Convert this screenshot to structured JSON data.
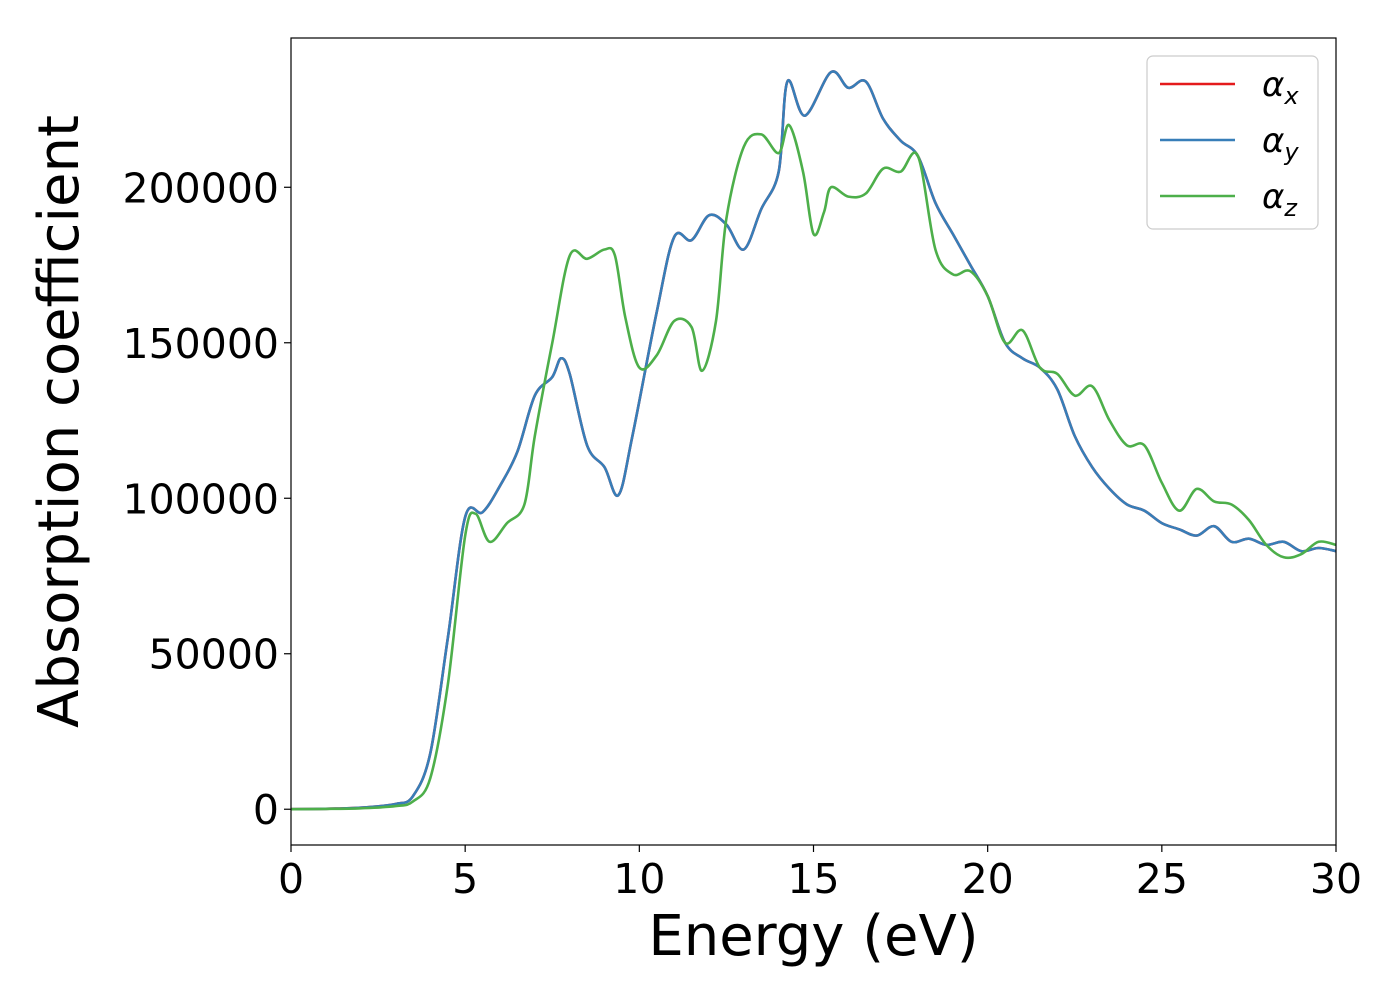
{
  "chart_data": {
    "type": "line",
    "xlabel": "Energy (eV)",
    "ylabel": "Absorption coefficient",
    "xlim": [
      0,
      30
    ],
    "ylim": [
      -11500,
      248000
    ],
    "xticks": [
      0,
      5,
      10,
      15,
      20,
      25,
      30
    ],
    "yticks": [
      0,
      50000,
      100000,
      150000,
      200000
    ],
    "grid": false,
    "legend_position": "top-right",
    "series": [
      {
        "name": "α_x",
        "symbol": "α",
        "subscript": "x",
        "color": "#e41a1c",
        "x": [
          0,
          1,
          2,
          3,
          3.5,
          4,
          4.5,
          5,
          5.5,
          6,
          6.5,
          7,
          7.5,
          7.75,
          8,
          8.5,
          9,
          9.4,
          9.8,
          10.5,
          11,
          11.5,
          12,
          12.5,
          13,
          13.5,
          14,
          14.25,
          14.75,
          15.5,
          16,
          16.5,
          17,
          17.5,
          18,
          18.5,
          19,
          19.5,
          20,
          20.5,
          21,
          21.5,
          22,
          22.5,
          23,
          23.5,
          24,
          24.5,
          25,
          25.5,
          26,
          26.5,
          27,
          27.5,
          28,
          28.5,
          29,
          29.5,
          30
        ],
        "y": [
          0,
          150,
          500,
          1700,
          4200,
          18000,
          55000,
          94000,
          95500,
          104000,
          115000,
          133000,
          139000,
          145000,
          140000,
          117000,
          110000,
          101000,
          120000,
          160000,
          184000,
          183000,
          191000,
          188000,
          180000,
          193000,
          205000,
          234000,
          223000,
          237000,
          232000,
          234000,
          222000,
          215000,
          210000,
          195000,
          185000,
          175000,
          165000,
          150000,
          145000,
          142000,
          135000,
          120000,
          110000,
          103000,
          98000,
          96000,
          92000,
          90000,
          88000,
          91000,
          86000,
          87000,
          85000,
          86000,
          83000,
          84000,
          83000
        ]
      },
      {
        "name": "α_y",
        "symbol": "α",
        "subscript": "y",
        "color": "#377eb8",
        "x": [
          0,
          1,
          2,
          3,
          3.5,
          4,
          4.5,
          5,
          5.5,
          6,
          6.5,
          7,
          7.5,
          7.75,
          8,
          8.5,
          9,
          9.4,
          9.8,
          10.5,
          11,
          11.5,
          12,
          12.5,
          13,
          13.5,
          14,
          14.25,
          14.75,
          15.5,
          16,
          16.5,
          17,
          17.5,
          18,
          18.5,
          19,
          19.5,
          20,
          20.5,
          21,
          21.5,
          22,
          22.5,
          23,
          23.5,
          24,
          24.5,
          25,
          25.5,
          26,
          26.5,
          27,
          27.5,
          28,
          28.5,
          29,
          29.5,
          30
        ],
        "y": [
          0,
          150,
          500,
          1700,
          4200,
          18000,
          55000,
          94000,
          95500,
          104000,
          115000,
          133000,
          139000,
          145000,
          140000,
          117000,
          110000,
          101000,
          120000,
          160000,
          184000,
          183000,
          191000,
          188000,
          180000,
          193000,
          205000,
          234000,
          223000,
          237000,
          232000,
          234000,
          222000,
          215000,
          210000,
          195000,
          185000,
          175000,
          165000,
          150000,
          145000,
          142000,
          135000,
          120000,
          110000,
          103000,
          98000,
          96000,
          92000,
          90000,
          88000,
          91000,
          86000,
          87000,
          85000,
          86000,
          83000,
          84000,
          83000
        ]
      },
      {
        "name": "α_z",
        "symbol": "α",
        "subscript": "z",
        "color": "#4daf4a",
        "x": [
          0,
          1,
          2,
          3,
          3.5,
          4,
          4.5,
          5,
          5.3,
          5.7,
          6.2,
          6.7,
          7,
          7.5,
          8,
          8.5,
          9,
          9.3,
          9.6,
          10,
          10.5,
          11,
          11.5,
          11.8,
          12.2,
          12.5,
          13,
          13.5,
          14,
          14.3,
          14.7,
          15,
          15.3,
          15.5,
          16,
          16.5,
          17,
          17.5,
          18,
          18.5,
          19,
          19.5,
          20,
          20.5,
          21,
          21.5,
          22,
          22.5,
          23,
          23.5,
          24,
          24.5,
          25,
          25.5,
          26,
          26.5,
          27,
          27.5,
          28,
          28.5,
          29,
          29.5,
          30
        ],
        "y": [
          0,
          100,
          300,
          1000,
          2500,
          10000,
          40000,
          88000,
          95000,
          86000,
          92000,
          98000,
          120000,
          150000,
          178000,
          177000,
          180000,
          178000,
          158000,
          142000,
          146000,
          157000,
          155000,
          141000,
          157000,
          190000,
          213000,
          217000,
          211000,
          220000,
          205000,
          185000,
          192000,
          200000,
          197000,
          198000,
          206000,
          205000,
          210000,
          180000,
          172000,
          173000,
          165000,
          150000,
          154000,
          142000,
          140000,
          133000,
          136000,
          125000,
          117000,
          117000,
          105000,
          96000,
          103000,
          99000,
          98000,
          93000,
          85000,
          81000,
          82000,
          86000,
          85000
        ]
      }
    ]
  }
}
